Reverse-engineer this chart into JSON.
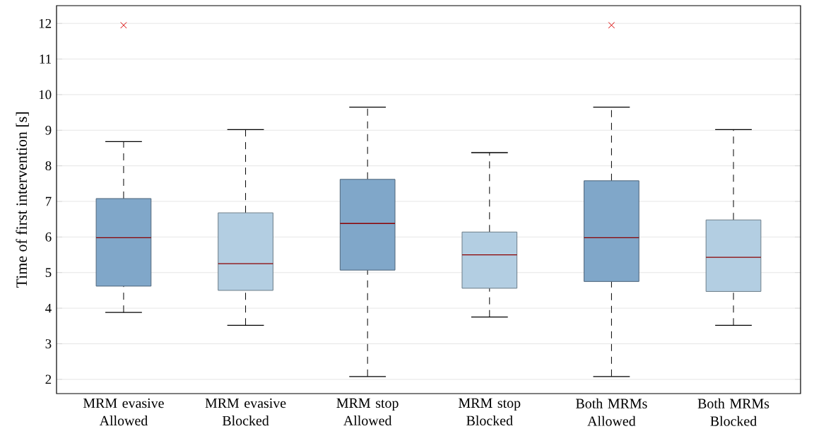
{
  "chart_data": {
    "type": "box",
    "ylabel": "Time of first intervention [s]",
    "categories": [
      "MRM evasive Allowed",
      "MRM evasive Blocked",
      "MRM stop Allowed",
      "MRM stop Blocked",
      "Both MRMs Allowed",
      "Both MRMs Blocked"
    ],
    "boxes": [
      {
        "low": 3.88,
        "q1": 4.62,
        "median": 5.98,
        "q3": 7.08,
        "high": 8.68,
        "outliers": [
          11.95
        ]
      },
      {
        "low": 3.52,
        "q1": 4.5,
        "median": 5.25,
        "q3": 6.68,
        "high": 9.02
      },
      {
        "low": 2.08,
        "q1": 5.07,
        "median": 6.38,
        "q3": 7.62,
        "high": 9.65
      },
      {
        "low": 3.75,
        "q1": 4.56,
        "median": 5.5,
        "q3": 6.14,
        "high": 8.37
      },
      {
        "low": 2.08,
        "q1": 4.75,
        "median": 5.98,
        "q3": 7.58,
        "high": 9.65,
        "outliers": [
          11.95
        ]
      },
      {
        "low": 3.52,
        "q1": 4.47,
        "median": 5.43,
        "q3": 6.48,
        "high": 9.02
      }
    ],
    "colors": [
      "#80a7c9",
      "#b3cee2",
      "#80a7c9",
      "#b3cee2",
      "#80a7c9",
      "#b3cee2"
    ],
    "ylim": [
      1.6,
      12.5
    ],
    "yticks": [
      2,
      3,
      4,
      5,
      6,
      7,
      8,
      9,
      10,
      11,
      12
    ],
    "grid": "y"
  }
}
